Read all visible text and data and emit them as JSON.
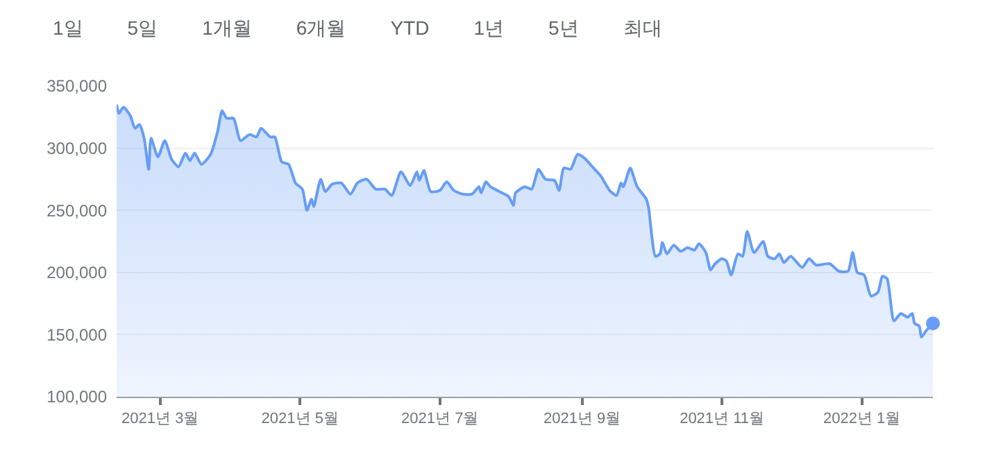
{
  "chart_data": {
    "type": "area",
    "annotations": [
      "1일",
      "5일",
      "1개월",
      "6개월",
      "YTD",
      "1년",
      "5년",
      "최대"
    ],
    "xlim": [
      "2021-02-10",
      "2022-02-01"
    ],
    "xticks": [
      {
        "value": "2021-03-01",
        "label": "2021년 3월"
      },
      {
        "value": "2021-05-01",
        "label": "2021년 5월"
      },
      {
        "value": "2021-07-01",
        "label": "2021년 7월"
      },
      {
        "value": "2021-09-01",
        "label": "2021년 9월"
      },
      {
        "value": "2021-11-01",
        "label": "2021년 11월"
      },
      {
        "value": "2022-01-01",
        "label": "2022년 1월"
      }
    ],
    "ylim": [
      100000,
      350000
    ],
    "yticks": [
      {
        "value": 100000,
        "label": "100,000"
      },
      {
        "value": 150000,
        "label": "150,000"
      },
      {
        "value": 200000,
        "label": "200,000"
      },
      {
        "value": 250000,
        "label": "250,000"
      },
      {
        "value": 300000,
        "label": "300,000"
      },
      {
        "value": 350000,
        "label": "350,000"
      }
    ],
    "grid": "y",
    "legend": false,
    "series": [
      {
        "color": "#669df6",
        "x": [
          "2021-02-10",
          "2021-02-11",
          "2021-02-13",
          "2021-02-16",
          "2021-02-18",
          "2021-02-20",
          "2021-02-22",
          "2021-02-24",
          "2021-02-25",
          "2021-02-28",
          "2021-03-03",
          "2021-03-06",
          "2021-03-09",
          "2021-03-12",
          "2021-03-14",
          "2021-03-16",
          "2021-03-19",
          "2021-03-23",
          "2021-03-26",
          "2021-03-28",
          "2021-03-30",
          "2021-04-02",
          "2021-04-05",
          "2021-04-09",
          "2021-04-12",
          "2021-04-14",
          "2021-04-18",
          "2021-04-20",
          "2021-04-23",
          "2021-04-26",
          "2021-04-29",
          "2021-05-02",
          "2021-05-04",
          "2021-05-06",
          "2021-05-07",
          "2021-05-10",
          "2021-05-12",
          "2021-05-15",
          "2021-05-19",
          "2021-05-23",
          "2021-05-26",
          "2021-05-30",
          "2021-06-03",
          "2021-06-07",
          "2021-06-10",
          "2021-06-14",
          "2021-06-18",
          "2021-06-21",
          "2021-06-22",
          "2021-06-24",
          "2021-06-27",
          "2021-07-01",
          "2021-07-04",
          "2021-07-07",
          "2021-07-11",
          "2021-07-15",
          "2021-07-18",
          "2021-07-19",
          "2021-07-21",
          "2021-07-23",
          "2021-07-27",
          "2021-07-31",
          "2021-08-02",
          "2021-08-03",
          "2021-08-07",
          "2021-08-10",
          "2021-08-13",
          "2021-08-16",
          "2021-08-20",
          "2021-08-22",
          "2021-08-24",
          "2021-08-27",
          "2021-08-30",
          "2021-09-02",
          "2021-09-06",
          "2021-09-09",
          "2021-09-13",
          "2021-09-16",
          "2021-09-18",
          "2021-09-19",
          "2021-09-22",
          "2021-09-25",
          "2021-09-29",
          "2021-09-30",
          "2021-10-03",
          "2021-10-05",
          "2021-10-06",
          "2021-10-08",
          "2021-10-11",
          "2021-10-14",
          "2021-10-17",
          "2021-10-20",
          "2021-10-22",
          "2021-10-25",
          "2021-10-27",
          "2021-10-29",
          "2021-11-01",
          "2021-11-03",
          "2021-11-05",
          "2021-11-08",
          "2021-11-10",
          "2021-11-12",
          "2021-11-15",
          "2021-11-19",
          "2021-11-21",
          "2021-11-24",
          "2021-11-26",
          "2021-11-28",
          "2021-12-01",
          "2021-12-06",
          "2021-12-09",
          "2021-12-12",
          "2021-12-18",
          "2021-12-22",
          "2021-12-26",
          "2021-12-28",
          "2021-12-30",
          "2022-01-02",
          "2022-01-05",
          "2022-01-08",
          "2022-01-10",
          "2022-01-12",
          "2022-01-15",
          "2022-01-18",
          "2022-01-21",
          "2022-01-23",
          "2022-01-24",
          "2022-01-26",
          "2022-01-27",
          "2022-01-29",
          "2022-02-01"
        ],
        "values": [
          335000,
          328000,
          333000,
          326000,
          316000,
          319000,
          308000,
          283000,
          308000,
          293000,
          306000,
          291000,
          285000,
          296000,
          290000,
          296000,
          287000,
          295000,
          313000,
          330000,
          324000,
          324000,
          306000,
          311000,
          309000,
          316000,
          309000,
          309000,
          289000,
          287000,
          272000,
          267000,
          250000,
          259000,
          253000,
          275000,
          265000,
          271000,
          272000,
          263000,
          272000,
          275000,
          267000,
          267000,
          262000,
          281000,
          270000,
          281000,
          274000,
          282000,
          265000,
          266000,
          273000,
          266000,
          263000,
          263000,
          269000,
          264000,
          273000,
          269000,
          265000,
          261000,
          254000,
          264000,
          269000,
          267000,
          283000,
          275000,
          274000,
          266000,
          284000,
          283000,
          295000,
          292000,
          284000,
          278000,
          266000,
          262000,
          272000,
          269000,
          284000,
          269000,
          259000,
          252000,
          213000,
          215000,
          224000,
          215000,
          222000,
          217000,
          220000,
          218000,
          223000,
          216000,
          202000,
          207000,
          211000,
          209000,
          198000,
          215000,
          213000,
          233000,
          216000,
          225000,
          213000,
          211000,
          215000,
          208000,
          213000,
          204000,
          211000,
          206000,
          207000,
          201000,
          201000,
          216000,
          200000,
          198000,
          181000,
          184000,
          197000,
          195000,
          161000,
          167000,
          164000,
          167000,
          159000,
          157000,
          148000,
          153000,
          159000
        ]
      },
      {
        "type": "scatter",
        "marker": "circle",
        "color": "#669df6",
        "x": [
          "2022-02-01"
        ],
        "values": [
          159000
        ]
      }
    ]
  }
}
